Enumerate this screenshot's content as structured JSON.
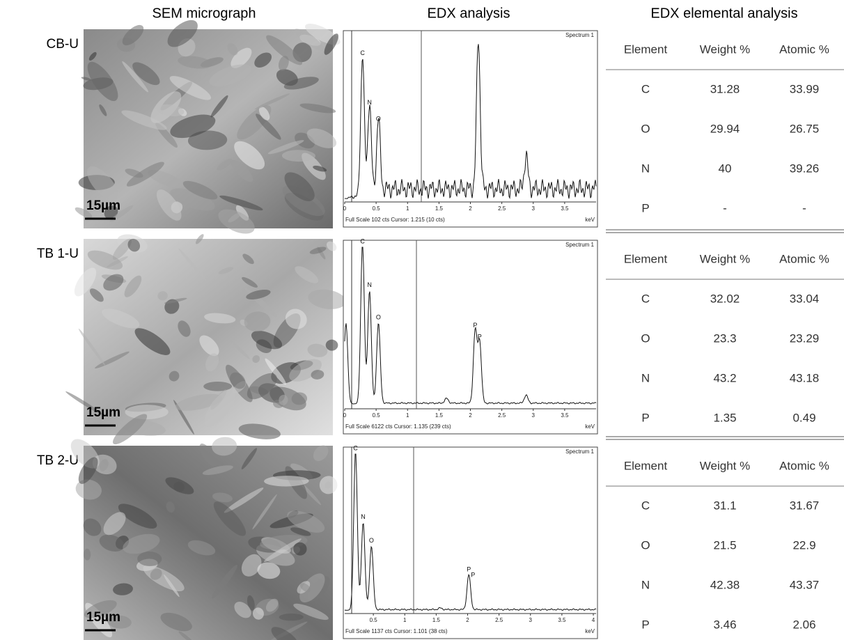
{
  "headers": {
    "sem": "SEM micrograph",
    "edx": "EDX analysis",
    "table": "EDX elemental analysis"
  },
  "samples": [
    {
      "label": "CB-U",
      "scale_bar": "15µm",
      "spectrum": {
        "title": "Spectrum 1",
        "peaks": [
          "C",
          "N",
          "O"
        ],
        "x_ticks": [
          "0",
          "0.5",
          "1",
          "1.5",
          "2",
          "2.5",
          "3",
          "3.5"
        ],
        "footer": "Full Scale 102 cts Cursor: 1.215 (10 cts)",
        "unit": "keV"
      },
      "table": {
        "columns": [
          "Element",
          "Weight %",
          "Atomic %"
        ],
        "rows": [
          [
            "C",
            31.28,
            33.99
          ],
          [
            "O",
            29.94,
            26.75
          ],
          [
            "N",
            40,
            39.26
          ],
          [
            "P",
            "-",
            "-"
          ]
        ]
      }
    },
    {
      "label": "TB 1-U",
      "scale_bar": "15µm",
      "spectrum": {
        "title": "Spectrum 1",
        "peaks": [
          "C",
          "N",
          "O",
          "P",
          "P"
        ],
        "x_ticks": [
          "0",
          "0.5",
          "1",
          "1.5",
          "2",
          "2.5",
          "3",
          "3.5"
        ],
        "footer": "Full Scale 6122 cts Cursor: 1.135  (239 cts)",
        "unit": "keV"
      },
      "table": {
        "columns": [
          "Element",
          "Weight %",
          "Atomic %"
        ],
        "rows": [
          [
            "C",
            32.02,
            33.04
          ],
          [
            "O",
            23.3,
            23.29
          ],
          [
            "N",
            43.2,
            43.18
          ],
          [
            "P",
            1.35,
            0.49
          ]
        ]
      }
    },
    {
      "label": "TB 2-U",
      "scale_bar": "15µm",
      "spectrum": {
        "title": "Spectrum 1",
        "peaks": [
          "C",
          "N",
          "O",
          "P",
          "P"
        ],
        "x_ticks": [
          "0.5",
          "1",
          "1.5",
          "2",
          "2.5",
          "3",
          "3.5",
          "4"
        ],
        "footer": "Full Scale 1137 cts Cursor: 1.101  (38 cts)",
        "unit": "keV"
      },
      "table": {
        "columns": [
          "Element",
          "Weight %",
          "Atomic %"
        ],
        "rows": [
          [
            "C",
            31.1,
            31.67
          ],
          [
            "O",
            21.5,
            22.9
          ],
          [
            "N",
            42.38,
            43.37
          ],
          [
            "P",
            3.46,
            2.06
          ]
        ]
      }
    }
  ]
}
